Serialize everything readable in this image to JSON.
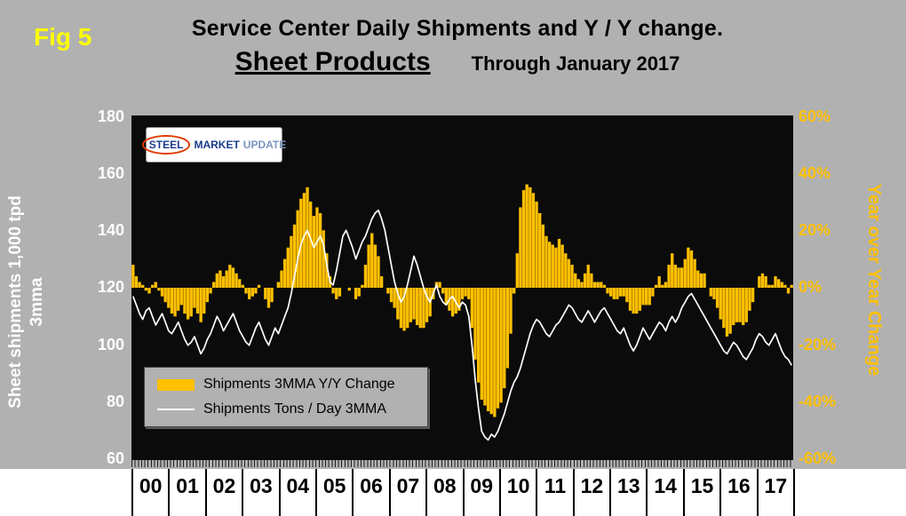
{
  "header": {
    "fig_label": "Fig 5",
    "title_line1": "Service Center Daily Shipments and Y / Y change.",
    "title_line2": "Sheet Products",
    "title_line3": "Through January 2017"
  },
  "logo": {
    "word1": "STEEL",
    "word2": "MARKET",
    "word3": "UPDATE"
  },
  "left_axis": {
    "title_line1": "Sheet shipments 1,000 tpd",
    "title_line2": "3mma",
    "ticks": [
      "180",
      "160",
      "140",
      "120",
      "100",
      "80",
      "60"
    ]
  },
  "right_axis": {
    "title": "Year over Year Change",
    "ticks": [
      "60%",
      "40%",
      "20%",
      "0%",
      "-20%",
      "-40%",
      "-60%"
    ]
  },
  "x_axis": {
    "year_labels": [
      "00",
      "01",
      "02",
      "03",
      "04",
      "05",
      "06",
      "07",
      "08",
      "09",
      "10",
      "11",
      "12",
      "13",
      "14",
      "15",
      "16",
      "17"
    ]
  },
  "legend": {
    "items": [
      {
        "label": "Shipments 3MMA Y/Y Change"
      },
      {
        "label": "Shipments Tons / Day 3MMA"
      }
    ]
  },
  "colors": {
    "page_bg": "#b1b1b1",
    "plot_bg": "#0b0b0b",
    "bar": "#ffc000",
    "line": "#ffffff",
    "fig_label": "#ffff00",
    "right_axis_text": "#ffc000",
    "left_axis_text": "#ffffff",
    "title_text": "#000000",
    "year_band_bg": "#ffffff"
  },
  "chart_data": {
    "type": "combo",
    "frequency": "monthly",
    "x_start": "2000-01",
    "x_end": "2017-01",
    "title": "Service Center Daily Shipments and Y / Y change. Sheet Products Through January 2017",
    "left_axis_label": "Sheet shipments 1,000 tpd 3mma",
    "right_axis_label": "Year over Year Change",
    "left_ylim": [
      60,
      180
    ],
    "right_ylim": [
      -60,
      60
    ],
    "legend_position": "inside-left-bottom",
    "grid": false,
    "series": [
      {
        "name": "Shipments 3MMA Y/Y Change",
        "type": "bar",
        "axis": "right",
        "unit": "percent",
        "values": [
          8,
          4,
          2,
          1,
          -1,
          -2,
          1,
          2,
          -1,
          -3,
          -5,
          -7,
          -9,
          -10,
          -8,
          -6,
          -9,
          -11,
          -10,
          -7,
          -9,
          -12,
          -9,
          -5,
          -2,
          2,
          5,
          6,
          4,
          6,
          8,
          7,
          5,
          3,
          1,
          -2,
          -4,
          -3,
          -2,
          1,
          0,
          -4,
          -7,
          -5,
          0,
          2,
          6,
          10,
          14,
          18,
          22,
          27,
          31,
          33,
          35,
          30,
          25,
          28,
          26,
          20,
          12,
          4,
          -2,
          -4,
          -3,
          0,
          0,
          -1,
          0,
          -4,
          -3,
          1,
          8,
          15,
          19,
          15,
          11,
          4,
          0,
          -2,
          -5,
          -7,
          -11,
          -14,
          -15,
          -14,
          -12,
          -11,
          -13,
          -14,
          -14,
          -12,
          -10,
          -4,
          2,
          2,
          -2,
          -6,
          -8,
          -10,
          -9,
          -8,
          -4,
          -3,
          -4,
          -14,
          -25,
          -33,
          -39,
          -41,
          -43,
          -44,
          -45,
          -42,
          -40,
          -35,
          -28,
          -16,
          -2,
          12,
          28,
          34,
          36,
          35,
          33,
          30,
          26,
          22,
          18,
          16,
          15,
          14,
          17,
          15,
          12,
          10,
          8,
          5,
          3,
          2,
          5,
          8,
          5,
          2,
          2,
          2,
          1,
          -2,
          -3,
          -4,
          -4,
          -3,
          -3,
          -5,
          -8,
          -9,
          -9,
          -8,
          -6,
          -6,
          -6,
          -3,
          1,
          4,
          1,
          2,
          8,
          12,
          8,
          7,
          7,
          10,
          14,
          13,
          10,
          6,
          5,
          5,
          0,
          -3,
          -4,
          -7,
          -11,
          -14,
          -17,
          -16,
          -13,
          -12,
          -12,
          -13,
          -12,
          -8,
          -5,
          0,
          4,
          5,
          4,
          1,
          1,
          4,
          3,
          2,
          1,
          -2,
          1
        ]
      },
      {
        "name": "Shipments Tons / Day 3MMA",
        "type": "line",
        "axis": "left",
        "unit": "1000_tpd",
        "values": [
          117,
          114,
          111,
          109,
          112,
          113,
          110,
          107,
          109,
          111,
          108,
          105,
          104,
          106,
          108,
          105,
          102,
          100,
          101,
          103,
          100,
          97,
          99,
          102,
          104,
          107,
          110,
          108,
          105,
          107,
          109,
          111,
          108,
          105,
          103,
          101,
          100,
          103,
          106,
          108,
          105,
          102,
          100,
          103,
          106,
          104,
          107,
          110,
          113,
          118,
          124,
          130,
          135,
          138,
          140,
          137,
          134,
          136,
          138,
          135,
          128,
          122,
          121,
          126,
          132,
          138,
          140,
          137,
          134,
          130,
          133,
          136,
          138,
          141,
          144,
          146,
          147,
          144,
          140,
          134,
          128,
          122,
          118,
          115,
          117,
          121,
          126,
          131,
          128,
          124,
          120,
          117,
          115,
          118,
          121,
          117,
          115,
          114,
          116,
          117,
          115,
          113,
          115,
          114,
          110,
          100,
          88,
          78,
          70,
          68,
          67,
          69,
          68,
          70,
          73,
          76,
          80,
          84,
          87,
          89,
          92,
          96,
          100,
          104,
          107,
          109,
          108,
          106,
          104,
          103,
          105,
          107,
          108,
          110,
          112,
          114,
          113,
          111,
          109,
          108,
          110,
          112,
          110,
          108,
          110,
          112,
          113,
          111,
          109,
          107,
          105,
          104,
          106,
          103,
          100,
          98,
          100,
          103,
          106,
          104,
          102,
          104,
          106,
          108,
          107,
          105,
          108,
          110,
          108,
          110,
          113,
          115,
          117,
          118,
          116,
          114,
          112,
          110,
          108,
          106,
          104,
          102,
          100,
          98,
          97,
          99,
          101,
          100,
          98,
          96,
          95,
          97,
          99,
          102,
          104,
          103,
          101,
          100,
          102,
          104,
          101,
          98,
          96,
          95,
          93
        ]
      }
    ]
  }
}
